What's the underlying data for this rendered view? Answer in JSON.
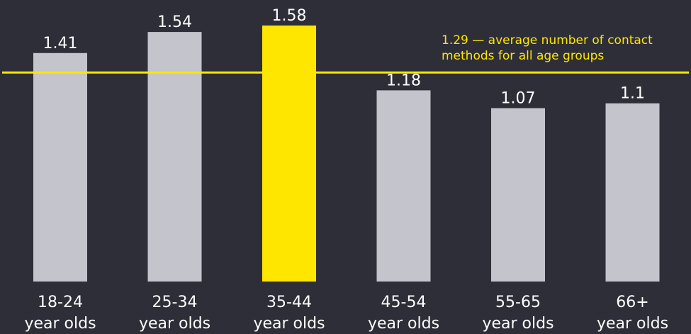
{
  "chart_data": {
    "type": "bar",
    "categories": [
      [
        "18-24",
        "year olds"
      ],
      [
        "25-34",
        "year olds"
      ],
      [
        "35-44",
        "year olds"
      ],
      [
        "45-54",
        "year olds"
      ],
      [
        "55-65",
        "year olds"
      ],
      [
        "66+",
        "year olds"
      ]
    ],
    "values": [
      1.41,
      1.54,
      1.58,
      1.18,
      1.07,
      1.1
    ],
    "value_labels": [
      "1.41",
      "1.54",
      "1.58",
      "1.18",
      "1.07",
      "1.1"
    ],
    "highlight_index": 2,
    "reference_line": {
      "value": 1.29,
      "label_lines": [
        "1.29 — average number of contact",
        "methods for all age groups"
      ]
    },
    "ylim": [
      0,
      1.58
    ],
    "grid": false,
    "legend": "none"
  },
  "colors": {
    "background": "#2e2e38",
    "bar": "#c4c4cd",
    "highlight_bar": "#ffe600",
    "reference_line": "#ffe600",
    "text": "#ffffff"
  }
}
